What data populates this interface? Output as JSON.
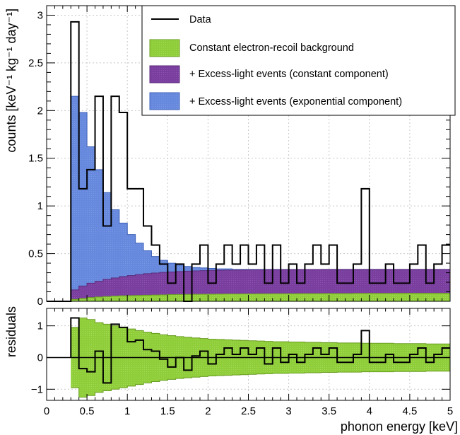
{
  "chart_data": [
    {
      "type": "histogram",
      "panel": "main",
      "xlim": [
        0,
        5
      ],
      "ylim": [
        0,
        3.1
      ],
      "ylabel": "counts [keV⁻¹ kg⁻¹ day⁻¹]",
      "x_ticks": [
        "0",
        "0.5",
        "1",
        "1.5",
        "2",
        "2.5",
        "3",
        "3.5",
        "4",
        "4.5",
        "5"
      ],
      "y_ticks": [
        "0",
        "0.5",
        "1",
        "1.5",
        "2",
        "2.5",
        "3"
      ],
      "bin_width": 0.1,
      "bin_start": 0.3,
      "data": [
        2.93,
        1.18,
        1.38,
        2.15,
        0.79,
        2.15,
        1.98,
        1.18,
        1.18,
        0.79,
        0.59,
        0.39,
        0.19,
        0.39,
        0.0,
        0.39,
        0.59,
        0.19,
        0.39,
        0.59,
        0.39,
        0.59,
        0.39,
        0.59,
        0.19,
        0.59,
        0.19,
        0.39,
        0.19,
        0.39,
        0.59,
        0.39,
        0.59,
        0.19,
        0.19,
        0.39,
        1.18,
        0.19,
        0.19,
        0.39,
        0.19,
        0.19,
        0.39,
        0.59,
        0.19,
        0.39,
        0.59
      ],
      "total_model": [
        2.15,
        1.98,
        1.62,
        1.38,
        1.14,
        0.96,
        0.82,
        0.7,
        0.61,
        0.53,
        0.47,
        0.43,
        0.4,
        0.38,
        0.365,
        0.355,
        0.35,
        0.345,
        0.34,
        0.34,
        0.335,
        0.335,
        0.335,
        0.335,
        0.335,
        0.335,
        0.335,
        0.335,
        0.335,
        0.335,
        0.335,
        0.335,
        0.335,
        0.335,
        0.335,
        0.335,
        0.335,
        0.335,
        0.335,
        0.335,
        0.335,
        0.335,
        0.335,
        0.335,
        0.335,
        0.335,
        0.335
      ],
      "constant_excess": [
        0.12,
        0.16,
        0.19,
        0.21,
        0.23,
        0.245,
        0.26,
        0.27,
        0.28,
        0.29,
        0.297,
        0.303,
        0.308,
        0.312,
        0.316,
        0.319,
        0.322,
        0.324,
        0.326,
        0.327,
        0.328,
        0.329,
        0.33,
        0.331,
        0.332,
        0.332,
        0.333,
        0.333,
        0.334,
        0.334,
        0.334,
        0.335,
        0.335,
        0.335,
        0.335,
        0.335,
        0.335,
        0.335,
        0.335,
        0.335,
        0.335,
        0.335,
        0.335,
        0.335,
        0.335,
        0.335,
        0.335
      ],
      "background": [
        0.02,
        0.03,
        0.04,
        0.045,
        0.05,
        0.055,
        0.058,
        0.06,
        0.062,
        0.064,
        0.066,
        0.068,
        0.07,
        0.071,
        0.072,
        0.073,
        0.074,
        0.075,
        0.076,
        0.077,
        0.077,
        0.078,
        0.078,
        0.079,
        0.079,
        0.08,
        0.08,
        0.08,
        0.081,
        0.081,
        0.081,
        0.082,
        0.082,
        0.082,
        0.082,
        0.083,
        0.083,
        0.083,
        0.083,
        0.083,
        0.084,
        0.084,
        0.084,
        0.084,
        0.084,
        0.084,
        0.084
      ],
      "legend": [
        {
          "label": "Data",
          "color": "#000000",
          "kind": "line"
        },
        {
          "label": "Constant electron-recoil background",
          "color": "#8fce3a",
          "kind": "box"
        },
        {
          "label": "+ Excess-light events (constant component)",
          "color": "#7a3f9e",
          "kind": "box"
        },
        {
          "label": "+ Excess-light events (exponential component)",
          "color": "#6688dd",
          "kind": "box"
        }
      ],
      "legend_placement": "top-right",
      "grid": true
    },
    {
      "type": "histogram",
      "panel": "residuals",
      "xlim": [
        0,
        5
      ],
      "ylim": [
        -1.35,
        1.55
      ],
      "xlabel": "phonon energy [keV]",
      "ylabel": "residuals",
      "x_ticks": [
        "0",
        "0.5",
        "1",
        "1.5",
        "2",
        "2.5",
        "3",
        "3.5",
        "4",
        "4.5",
        "5"
      ],
      "y_ticks": [
        "−1",
        "0",
        "1"
      ],
      "bin_width": 0.1,
      "bin_start": 0.3,
      "residuals": [
        1.25,
        -0.35,
        -0.45,
        0.2,
        -0.8,
        1.05,
        0.95,
        0.5,
        0.55,
        0.25,
        0.2,
        -0.05,
        -0.3,
        0.0,
        -0.4,
        0.05,
        0.2,
        -0.2,
        0.1,
        0.3,
        0.1,
        0.3,
        0.1,
        0.3,
        -0.2,
        0.3,
        -0.15,
        0.1,
        -0.15,
        0.1,
        0.3,
        0.1,
        0.3,
        -0.15,
        -0.15,
        0.1,
        0.85,
        -0.15,
        -0.15,
        0.1,
        -0.15,
        -0.15,
        0.1,
        0.3,
        -0.15,
        0.1,
        0.3
      ],
      "band_halfwidth": [
        0.95,
        1.25,
        1.2,
        1.1,
        1.05,
        1.0,
        0.95,
        0.9,
        0.85,
        0.8,
        0.76,
        0.72,
        0.69,
        0.66,
        0.64,
        0.62,
        0.6,
        0.58,
        0.57,
        0.56,
        0.55,
        0.54,
        0.53,
        0.52,
        0.51,
        0.5,
        0.5,
        0.49,
        0.49,
        0.48,
        0.48,
        0.47,
        0.47,
        0.46,
        0.46,
        0.46,
        0.45,
        0.45,
        0.45,
        0.45,
        0.44,
        0.44,
        0.44,
        0.44,
        0.43,
        0.43,
        0.43
      ],
      "band_color": "#8fce3a"
    }
  ]
}
